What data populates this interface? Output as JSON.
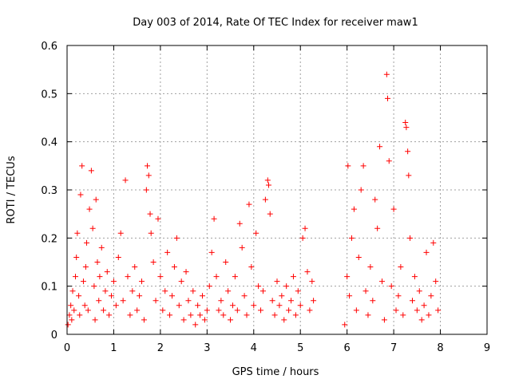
{
  "chart_data": {
    "type": "scatter",
    "title": "Day 003 of 2014, Rate Of TEC Index for receiver maw1",
    "xlabel": "GPS time / hours",
    "ylabel": "ROTI / TECUs",
    "xlim": [
      0,
      9
    ],
    "ylim": [
      0,
      0.6
    ],
    "x_ticks": [
      0,
      1,
      2,
      3,
      4,
      5,
      6,
      7,
      8,
      9
    ],
    "y_ticks": [
      0,
      0.1,
      0.2,
      0.3,
      0.4,
      0.5,
      0.6
    ],
    "x_tick_labels": [
      "0",
      "1",
      "2",
      "3",
      "4",
      "5",
      "6",
      "7",
      "8",
      "9"
    ],
    "y_tick_labels": [
      "0",
      "0.1",
      "0.2",
      "0.3",
      "0.4",
      "0.5",
      "0.6"
    ],
    "grid": true,
    "legend": "none",
    "marker": "plus",
    "marker_color": "#ff0000",
    "series": [
      {
        "points": [
          [
            0.02,
            0.02
          ],
          [
            0.05,
            0.04
          ],
          [
            0.08,
            0.06
          ],
          [
            0.1,
            0.03
          ],
          [
            0.12,
            0.09
          ],
          [
            0.15,
            0.05
          ],
          [
            0.18,
            0.12
          ],
          [
            0.2,
            0.16
          ],
          [
            0.22,
            0.21
          ],
          [
            0.25,
            0.08
          ],
          [
            0.27,
            0.04
          ],
          [
            0.29,
            0.29
          ],
          [
            0.32,
            0.35
          ],
          [
            0.35,
            0.11
          ],
          [
            0.38,
            0.06
          ],
          [
            0.4,
            0.14
          ],
          [
            0.42,
            0.19
          ],
          [
            0.45,
            0.05
          ],
          [
            0.48,
            0.26
          ],
          [
            0.52,
            0.34
          ],
          [
            0.55,
            0.22
          ],
          [
            0.58,
            0.1
          ],
          [
            0.6,
            0.03
          ],
          [
            0.62,
            0.28
          ],
          [
            0.65,
            0.15
          ],
          [
            0.68,
            0.07
          ],
          [
            0.7,
            0.12
          ],
          [
            0.74,
            0.18
          ],
          [
            0.78,
            0.05
          ],
          [
            0.82,
            0.09
          ],
          [
            0.86,
            0.13
          ],
          [
            0.9,
            0.04
          ],
          [
            0.95,
            0.08
          ],
          [
            1.0,
            0.11
          ],
          [
            1.05,
            0.06
          ],
          [
            1.1,
            0.16
          ],
          [
            1.15,
            0.21
          ],
          [
            1.2,
            0.07
          ],
          [
            1.25,
            0.32
          ],
          [
            1.3,
            0.12
          ],
          [
            1.35,
            0.04
          ],
          [
            1.4,
            0.09
          ],
          [
            1.45,
            0.14
          ],
          [
            1.5,
            0.05
          ],
          [
            1.55,
            0.08
          ],
          [
            1.6,
            0.11
          ],
          [
            1.65,
            0.03
          ],
          [
            1.7,
            0.3
          ],
          [
            1.72,
            0.35
          ],
          [
            1.75,
            0.33
          ],
          [
            1.78,
            0.25
          ],
          [
            1.8,
            0.21
          ],
          [
            1.85,
            0.15
          ],
          [
            1.9,
            0.07
          ],
          [
            1.95,
            0.24
          ],
          [
            2.0,
            0.12
          ],
          [
            2.05,
            0.05
          ],
          [
            2.1,
            0.09
          ],
          [
            2.15,
            0.17
          ],
          [
            2.2,
            0.04
          ],
          [
            2.25,
            0.08
          ],
          [
            2.3,
            0.14
          ],
          [
            2.35,
            0.2
          ],
          [
            2.4,
            0.06
          ],
          [
            2.45,
            0.11
          ],
          [
            2.5,
            0.03
          ],
          [
            2.55,
            0.13
          ],
          [
            2.6,
            0.07
          ],
          [
            2.65,
            0.04
          ],
          [
            2.7,
            0.09
          ],
          [
            2.75,
            0.02
          ],
          [
            2.8,
            0.06
          ],
          [
            2.85,
            0.04
          ],
          [
            2.9,
            0.08
          ],
          [
            2.95,
            0.03
          ],
          [
            3.0,
            0.05
          ],
          [
            3.05,
            0.1
          ],
          [
            3.1,
            0.17
          ],
          [
            3.15,
            0.24
          ],
          [
            3.2,
            0.12
          ],
          [
            3.25,
            0.05
          ],
          [
            3.3,
            0.07
          ],
          [
            3.35,
            0.04
          ],
          [
            3.4,
            0.15
          ],
          [
            3.45,
            0.09
          ],
          [
            3.5,
            0.03
          ],
          [
            3.55,
            0.06
          ],
          [
            3.6,
            0.12
          ],
          [
            3.65,
            0.05
          ],
          [
            3.7,
            0.23
          ],
          [
            3.75,
            0.18
          ],
          [
            3.8,
            0.08
          ],
          [
            3.85,
            0.04
          ],
          [
            3.9,
            0.27
          ],
          [
            3.95,
            0.14
          ],
          [
            4.0,
            0.06
          ],
          [
            4.05,
            0.21
          ],
          [
            4.1,
            0.1
          ],
          [
            4.15,
            0.05
          ],
          [
            4.2,
            0.09
          ],
          [
            4.25,
            0.28
          ],
          [
            4.3,
            0.32
          ],
          [
            4.32,
            0.31
          ],
          [
            4.35,
            0.25
          ],
          [
            4.4,
            0.07
          ],
          [
            4.45,
            0.04
          ],
          [
            4.5,
            0.11
          ],
          [
            4.55,
            0.06
          ],
          [
            4.6,
            0.08
          ],
          [
            4.65,
            0.03
          ],
          [
            4.7,
            0.1
          ],
          [
            4.75,
            0.05
          ],
          [
            4.8,
            0.07
          ],
          [
            4.85,
            0.12
          ],
          [
            4.9,
            0.04
          ],
          [
            4.95,
            0.09
          ],
          [
            5.0,
            0.06
          ],
          [
            5.05,
            0.2
          ],
          [
            5.1,
            0.22
          ],
          [
            5.15,
            0.13
          ],
          [
            5.2,
            0.05
          ],
          [
            5.25,
            0.11
          ],
          [
            5.28,
            0.07
          ],
          [
            5.95,
            0.02
          ],
          [
            6.0,
            0.12
          ],
          [
            6.02,
            0.35
          ],
          [
            6.05,
            0.08
          ],
          [
            6.1,
            0.2
          ],
          [
            6.15,
            0.26
          ],
          [
            6.2,
            0.05
          ],
          [
            6.25,
            0.16
          ],
          [
            6.3,
            0.3
          ],
          [
            6.35,
            0.35
          ],
          [
            6.4,
            0.09
          ],
          [
            6.45,
            0.04
          ],
          [
            6.5,
            0.14
          ],
          [
            6.55,
            0.07
          ],
          [
            6.6,
            0.28
          ],
          [
            6.65,
            0.22
          ],
          [
            6.7,
            0.39
          ],
          [
            6.75,
            0.11
          ],
          [
            6.8,
            0.03
          ],
          [
            6.85,
            0.54
          ],
          [
            6.87,
            0.49
          ],
          [
            6.9,
            0.36
          ],
          [
            6.95,
            0.1
          ],
          [
            7.0,
            0.26
          ],
          [
            7.05,
            0.05
          ],
          [
            7.1,
            0.08
          ],
          [
            7.15,
            0.14
          ],
          [
            7.2,
            0.04
          ],
          [
            7.25,
            0.44
          ],
          [
            7.27,
            0.43
          ],
          [
            7.3,
            0.38
          ],
          [
            7.32,
            0.33
          ],
          [
            7.35,
            0.2
          ],
          [
            7.4,
            0.07
          ],
          [
            7.45,
            0.12
          ],
          [
            7.5,
            0.05
          ],
          [
            7.55,
            0.09
          ],
          [
            7.6,
            0.03
          ],
          [
            7.65,
            0.06
          ],
          [
            7.7,
            0.17
          ],
          [
            7.75,
            0.04
          ],
          [
            7.8,
            0.08
          ],
          [
            7.85,
            0.19
          ],
          [
            7.9,
            0.11
          ],
          [
            7.95,
            0.05
          ]
        ]
      }
    ]
  }
}
